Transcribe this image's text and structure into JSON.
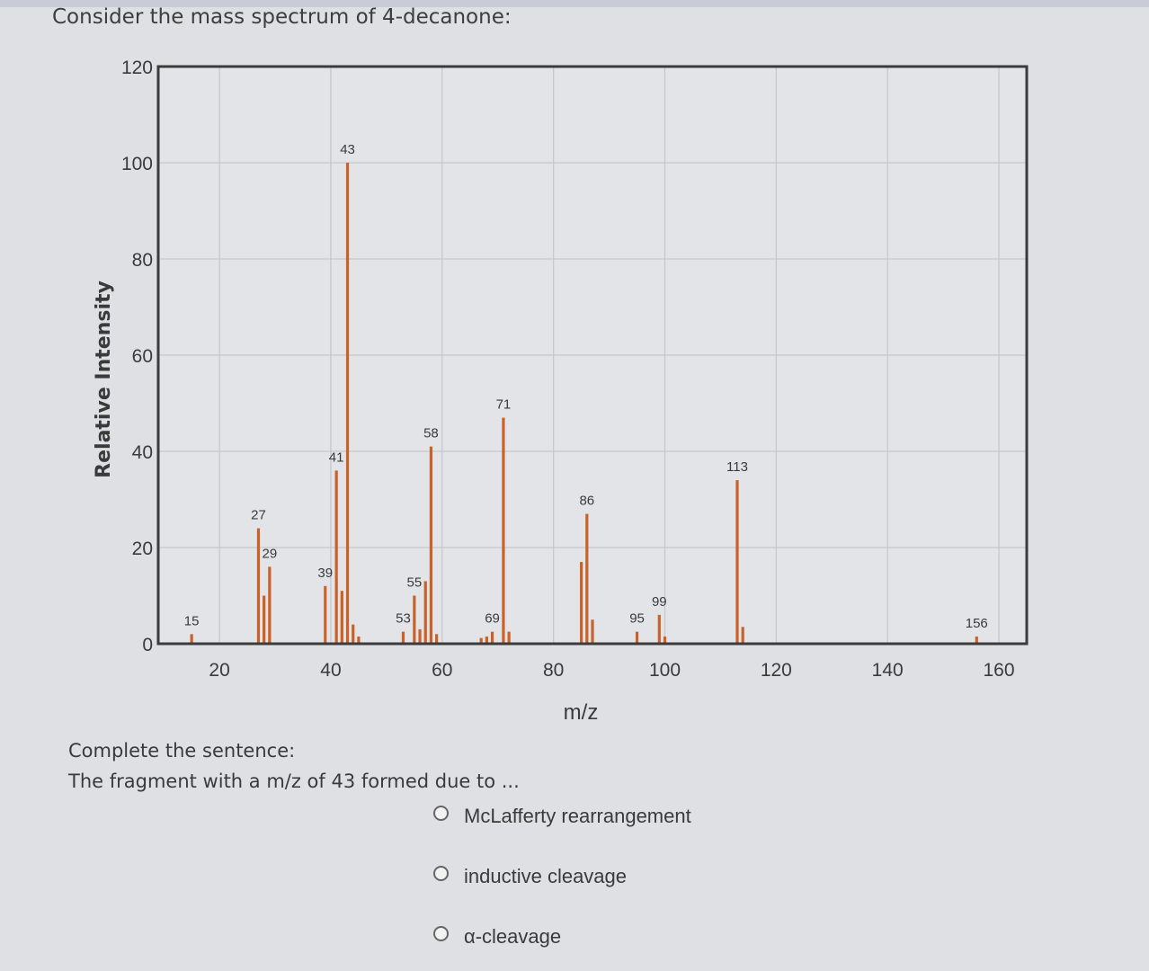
{
  "question": {
    "title": "Consider the mass spectrum of 4-decanone:",
    "prompt_line1": "Complete the sentence:",
    "prompt_line2": "The fragment with a m/z of 43 formed due to ...",
    "options": [
      {
        "label": "McLafferty rearrangement",
        "selected": false
      },
      {
        "label": "inductive cleavage",
        "selected": false
      },
      {
        "label": "α-cleavage",
        "selected": false
      }
    ]
  },
  "colors": {
    "bar": "#c8622a",
    "grid": "#c4c6c9",
    "axis": "#3b3b3b",
    "background": "#dfe0e3"
  },
  "chart_data": {
    "type": "bar",
    "xlabel": "m/z",
    "ylabel": "Relative Intensity",
    "xlim": [
      9,
      165
    ],
    "ylim": [
      0,
      120
    ],
    "xticks": [
      20,
      40,
      60,
      80,
      100,
      120,
      140,
      160
    ],
    "yticks": [
      0,
      20,
      40,
      60,
      80,
      100,
      120
    ],
    "grid": true,
    "peaks": [
      {
        "mz": 15,
        "intensity": 2,
        "label": "15"
      },
      {
        "mz": 27,
        "intensity": 24,
        "label": "27"
      },
      {
        "mz": 28,
        "intensity": 10,
        "label": ""
      },
      {
        "mz": 29,
        "intensity": 16,
        "label": "29"
      },
      {
        "mz": 39,
        "intensity": 12,
        "label": "39"
      },
      {
        "mz": 41,
        "intensity": 36,
        "label": "41"
      },
      {
        "mz": 42,
        "intensity": 11,
        "label": ""
      },
      {
        "mz": 43,
        "intensity": 100,
        "label": "43"
      },
      {
        "mz": 44,
        "intensity": 4,
        "label": ""
      },
      {
        "mz": 45,
        "intensity": 1.5,
        "label": ""
      },
      {
        "mz": 53,
        "intensity": 2.5,
        "label": "53"
      },
      {
        "mz": 55,
        "intensity": 10,
        "label": "55"
      },
      {
        "mz": 56,
        "intensity": 3,
        "label": ""
      },
      {
        "mz": 57,
        "intensity": 13,
        "label": ""
      },
      {
        "mz": 58,
        "intensity": 41,
        "label": "58"
      },
      {
        "mz": 59,
        "intensity": 2,
        "label": ""
      },
      {
        "mz": 67,
        "intensity": 1.2,
        "label": ""
      },
      {
        "mz": 68,
        "intensity": 1.5,
        "label": ""
      },
      {
        "mz": 69,
        "intensity": 2.5,
        "label": "69"
      },
      {
        "mz": 71,
        "intensity": 47,
        "label": "71"
      },
      {
        "mz": 72,
        "intensity": 2.5,
        "label": ""
      },
      {
        "mz": 85,
        "intensity": 17,
        "label": ""
      },
      {
        "mz": 86,
        "intensity": 27,
        "label": "86"
      },
      {
        "mz": 87,
        "intensity": 5,
        "label": ""
      },
      {
        "mz": 95,
        "intensity": 2.5,
        "label": "95"
      },
      {
        "mz": 99,
        "intensity": 6,
        "label": "99"
      },
      {
        "mz": 100,
        "intensity": 1.5,
        "label": ""
      },
      {
        "mz": 113,
        "intensity": 34,
        "label": "113"
      },
      {
        "mz": 114,
        "intensity": 3.5,
        "label": ""
      },
      {
        "mz": 156,
        "intensity": 1.5,
        "label": "156"
      }
    ]
  }
}
